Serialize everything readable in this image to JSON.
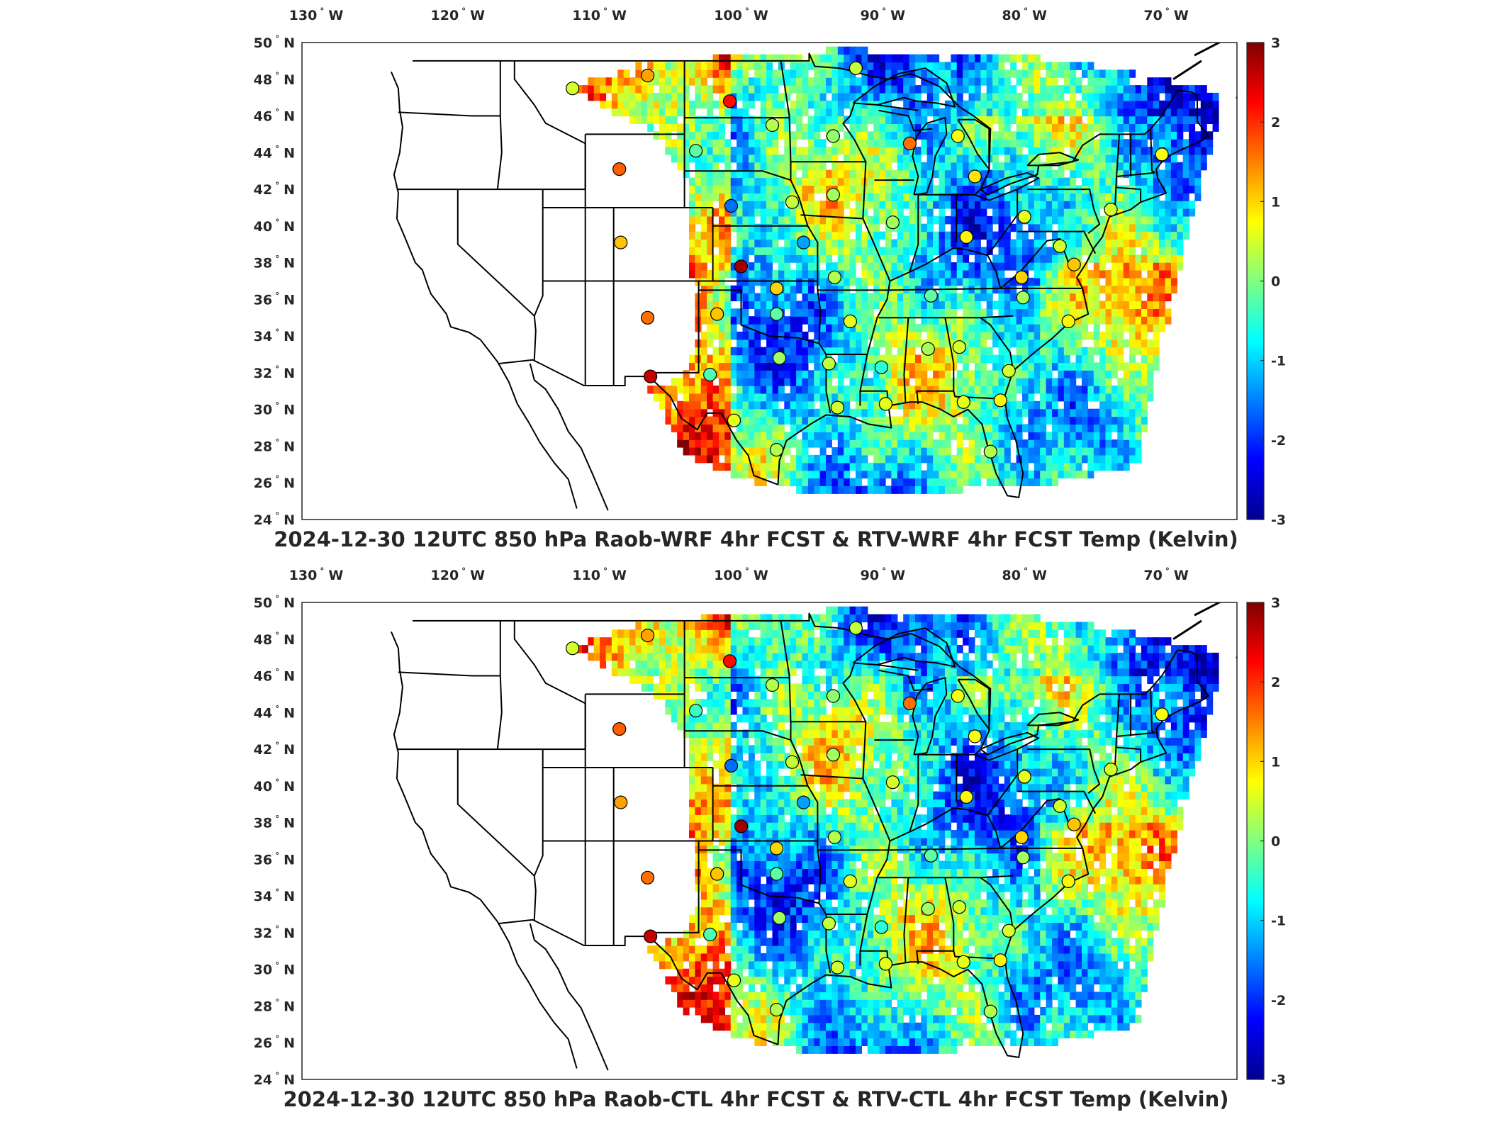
{
  "panels": [
    {
      "id": "wrf",
      "title": "2024-12-30 12UTC 850 hPa Raob-WRF 4hr FCST & RTV-WRF 4hr FCST Temp (Kelvin)"
    },
    {
      "id": "ctl",
      "title": "2024-12-30 12UTC 850 hPa Raob-CTL 4hr FCST & RTV-CTL 4hr FCST Temp (Kelvin)"
    }
  ],
  "map": {
    "lon_range": [
      -131,
      -65
    ],
    "lat_range": [
      24,
      50
    ],
    "lon_ticks": [
      -130,
      -120,
      -110,
      -100,
      -90,
      -80,
      -70
    ],
    "lat_ticks": [
      24,
      26,
      28,
      30,
      32,
      34,
      36,
      38,
      40,
      42,
      44,
      46,
      48,
      50
    ],
    "lon_tick_labels": [
      "130",
      "120",
      "110",
      "100",
      "90",
      "80",
      "70"
    ],
    "lat_tick_labels": [
      "24",
      "26",
      "28",
      "30",
      "32",
      "34",
      "36",
      "38",
      "40",
      "42",
      "44",
      "46",
      "48",
      "50"
    ],
    "lon_hemisphere": "W",
    "lat_hemisphere": "N",
    "degree_symbol": "°"
  },
  "colorbar": {
    "colormap": "jet",
    "range": [
      -3,
      3
    ],
    "ticks": [
      "3",
      "2",
      "1",
      "0",
      "-1",
      "-2",
      "-3"
    ],
    "colors": [
      "#00008f",
      "#0000ff",
      "#0080ff",
      "#00ffff",
      "#80ff80",
      "#ffff00",
      "#ff8000",
      "#ff0000",
      "#800000"
    ]
  },
  "raob_stations": [
    {
      "lon": -111.9,
      "lat": 47.5,
      "value": 0.5,
      "value_ctl": 0.5
    },
    {
      "lon": -106.6,
      "lat": 48.2,
      "value": 1.3,
      "value_ctl": 1.3
    },
    {
      "lon": -100.8,
      "lat": 46.8,
      "value": 2.2,
      "value_ctl": 2.2
    },
    {
      "lon": -97.8,
      "lat": 45.5,
      "value": 0.3,
      "value_ctl": 0.3
    },
    {
      "lon": -93.5,
      "lat": 44.9,
      "value": 0.1,
      "value_ctl": 0.1
    },
    {
      "lon": -88.1,
      "lat": 44.5,
      "value": 1.6,
      "value_ctl": 1.6
    },
    {
      "lon": -84.7,
      "lat": 44.9,
      "value": 0.7,
      "value_ctl": 0.7
    },
    {
      "lon": -83.5,
      "lat": 42.7,
      "value": 0.9,
      "value_ctl": 0.7
    },
    {
      "lon": -103.2,
      "lat": 44.1,
      "value": -0.2,
      "value_ctl": -0.4
    },
    {
      "lon": -108.6,
      "lat": 43.1,
      "value": 1.7,
      "value_ctl": 1.7
    },
    {
      "lon": -100.7,
      "lat": 41.1,
      "value": -1.6,
      "value_ctl": -1.6
    },
    {
      "lon": -96.4,
      "lat": 41.3,
      "value": 0.4,
      "value_ctl": 0.4
    },
    {
      "lon": -93.5,
      "lat": 41.7,
      "value": 0.2,
      "value_ctl": 0.2
    },
    {
      "lon": -89.3,
      "lat": 40.2,
      "value": 0.2,
      "value_ctl": 0.5
    },
    {
      "lon": -84.1,
      "lat": 39.4,
      "value": 0.8,
      "value_ctl": 0.8
    },
    {
      "lon": -80.0,
      "lat": 40.5,
      "value": 0.6,
      "value_ctl": 0.6
    },
    {
      "lon": -108.5,
      "lat": 39.1,
      "value": 1.1,
      "value_ctl": 1.3
    },
    {
      "lon": -100.0,
      "lat": 37.8,
      "value": 2.8,
      "value_ctl": 2.8
    },
    {
      "lon": -95.6,
      "lat": 39.1,
      "value": -1.3,
      "value_ctl": -1.3
    },
    {
      "lon": -97.5,
      "lat": 36.6,
      "value": 1.0,
      "value_ctl": 1.0
    },
    {
      "lon": -93.4,
      "lat": 37.2,
      "value": 0.3,
      "value_ctl": 0.3
    },
    {
      "lon": -86.6,
      "lat": 36.2,
      "value": -0.2,
      "value_ctl": -0.2
    },
    {
      "lon": -80.2,
      "lat": 37.2,
      "value": 1.0,
      "value_ctl": 1.0
    },
    {
      "lon": -80.1,
      "lat": 36.1,
      "value": 0.2,
      "value_ctl": 0.2
    },
    {
      "lon": -101.7,
      "lat": 35.2,
      "value": 1.1,
      "value_ctl": 1.1
    },
    {
      "lon": -97.5,
      "lat": 35.2,
      "value": -0.2,
      "value_ctl": -0.2
    },
    {
      "lon": -92.3,
      "lat": 34.8,
      "value": 0.6,
      "value_ctl": 0.6
    },
    {
      "lon": -106.6,
      "lat": 35.0,
      "value": 1.6,
      "value_ctl": 1.6
    },
    {
      "lon": -106.4,
      "lat": 31.8,
      "value": 2.6,
      "value_ctl": 2.6
    },
    {
      "lon": -102.2,
      "lat": 31.9,
      "value": -0.3,
      "value_ctl": -0.3
    },
    {
      "lon": -97.3,
      "lat": 32.8,
      "value": 0.2,
      "value_ctl": 0.2
    },
    {
      "lon": -93.8,
      "lat": 32.5,
      "value": 0.4,
      "value_ctl": 0.4
    },
    {
      "lon": -90.1,
      "lat": 32.3,
      "value": -0.5,
      "value_ctl": -0.5
    },
    {
      "lon": -86.8,
      "lat": 33.3,
      "value": 0.2,
      "value_ctl": 0.2
    },
    {
      "lon": -84.6,
      "lat": 33.4,
      "value": 0.5,
      "value_ctl": 0.5
    },
    {
      "lon": -81.1,
      "lat": 32.1,
      "value": 0.5,
      "value_ctl": 0.5
    },
    {
      "lon": -76.9,
      "lat": 34.8,
      "value": 0.8,
      "value_ctl": 0.8
    },
    {
      "lon": -76.5,
      "lat": 37.9,
      "value": 1.1,
      "value_ctl": 1.1
    },
    {
      "lon": -77.5,
      "lat": 38.9,
      "value": 0.5,
      "value_ctl": 0.5
    },
    {
      "lon": -93.2,
      "lat": 30.1,
      "value": 0.5,
      "value_ctl": 0.5
    },
    {
      "lon": -89.8,
      "lat": 30.3,
      "value": 0.6,
      "value_ctl": 0.6
    },
    {
      "lon": -84.3,
      "lat": 30.4,
      "value": 0.6,
      "value_ctl": 0.6
    },
    {
      "lon": -81.7,
      "lat": 30.5,
      "value": 0.8,
      "value_ctl": 0.8
    },
    {
      "lon": -82.4,
      "lat": 27.7,
      "value": 0.3,
      "value_ctl": 0.3
    },
    {
      "lon": -97.5,
      "lat": 27.8,
      "value": 0.3,
      "value_ctl": 0.3
    },
    {
      "lon": -100.5,
      "lat": 29.4,
      "value": 0.6,
      "value_ctl": 0.6
    },
    {
      "lon": -73.9,
      "lat": 40.9,
      "value": 0.5,
      "value_ctl": 0.5
    },
    {
      "lon": -70.3,
      "lat": 43.9,
      "value": 0.7,
      "value_ctl": 0.7
    },
    {
      "lon": -91.9,
      "lat": 48.6,
      "value": 0.4,
      "value_ctl": 0.4
    }
  ]
}
